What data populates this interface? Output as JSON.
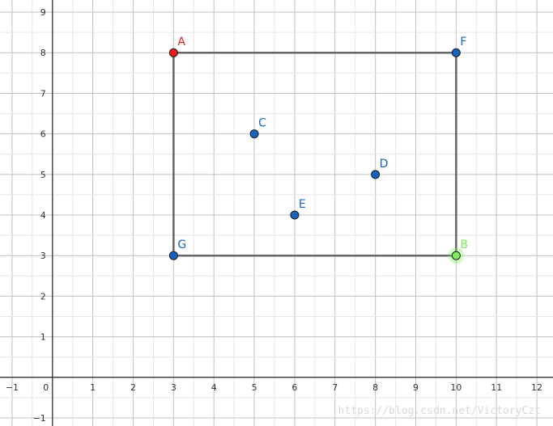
{
  "chart_data": {
    "type": "scatter",
    "title": "",
    "xlabel": "",
    "ylabel": "",
    "xlim": [
      -1.3,
      12.4
    ],
    "ylim": [
      -1.2,
      9.3
    ],
    "grid": true,
    "x_ticks": [
      "−1",
      "0",
      "1",
      "2",
      "3",
      "4",
      "5",
      "6",
      "7",
      "8",
      "9",
      "10",
      "11",
      "12"
    ],
    "y_ticks": [
      "−1",
      "1",
      "2",
      "3",
      "4",
      "5",
      "6",
      "7",
      "8",
      "9"
    ],
    "points": [
      {
        "label": "A",
        "x": 3,
        "y": 8,
        "color": "#ee1c1c",
        "text_color": "#ee1c1c"
      },
      {
        "label": "F",
        "x": 10,
        "y": 8,
        "color": "#1565c0",
        "text_color": "#1565c0"
      },
      {
        "label": "C",
        "x": 5,
        "y": 6,
        "color": "#1565c0",
        "text_color": "#1565c0"
      },
      {
        "label": "D",
        "x": 8,
        "y": 5,
        "color": "#1565c0",
        "text_color": "#1565c0"
      },
      {
        "label": "E",
        "x": 6,
        "y": 4,
        "color": "#1565c0",
        "text_color": "#1565c0"
      },
      {
        "label": "G",
        "x": 3,
        "y": 3,
        "color": "#1565c0",
        "text_color": "#1565c0"
      },
      {
        "label": "B",
        "x": 10,
        "y": 3,
        "color": "#7cf05a",
        "text_color": "#7cf05a",
        "highlight": true
      }
    ],
    "polygon": {
      "vertices": [
        "A",
        "F",
        "B",
        "G"
      ],
      "color": "#666666"
    }
  },
  "watermark": "https://blog.csdn.net/VictoryCzt"
}
